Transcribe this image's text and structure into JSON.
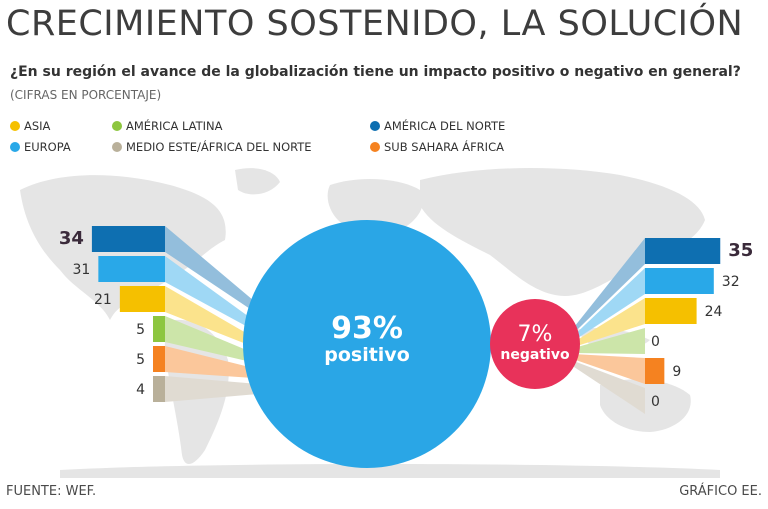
{
  "header": {
    "title": "CRECIMIENTO SOSTENIDO, LA SOLUCIÓN",
    "question": "¿En su región el avance de la globalización tiene un impacto positivo o negativo en general?",
    "units": "(CIFRAS EN PORCENTAJE)"
  },
  "legend": [
    {
      "label": "ASIA",
      "color": "#f5c000"
    },
    {
      "label": "AMÉRICA LATINA",
      "color": "#8dc63f"
    },
    {
      "label": "AMÉRICA DEL NORTE",
      "color": "#0e6fb1"
    },
    {
      "label": "EUROPA",
      "color": "#29a8e8"
    },
    {
      "label": "MEDIO ESTE/ÁFRICA DEL NORTE",
      "color": "#b9b09a"
    },
    {
      "label": "SUB SAHARA ÁFRICA",
      "color": "#f58220"
    }
  ],
  "chart_data": {
    "type": "bar",
    "title": "CRECIMIENTO SOSTENIDO, LA SOLUCIÓN",
    "units": "percent",
    "categories": [
      "AMÉRICA DEL NORTE",
      "EUROPA",
      "ASIA",
      "AMÉRICA LATINA",
      "SUB SAHARA ÁFRICA",
      "MEDIO ESTE/ÁFRICA DEL NORTE"
    ],
    "totals": {
      "positive": "93%",
      "positive_label": "positivo",
      "negative": "7%",
      "negative_label": "negativo"
    },
    "series": [
      {
        "name": "positivo",
        "values": [
          34,
          31,
          21,
          5,
          5,
          4
        ],
        "labels": [
          "34",
          "31",
          "21",
          "5",
          "5",
          "4"
        ]
      },
      {
        "name": "negativo",
        "values": [
          35,
          32,
          24,
          0,
          9,
          0
        ],
        "labels": [
          "35",
          "32",
          "24",
          "0",
          "9",
          "0"
        ]
      }
    ]
  },
  "footer": {
    "source": "FUENTE: WEF.",
    "credit": "GRÁFICO EE."
  }
}
